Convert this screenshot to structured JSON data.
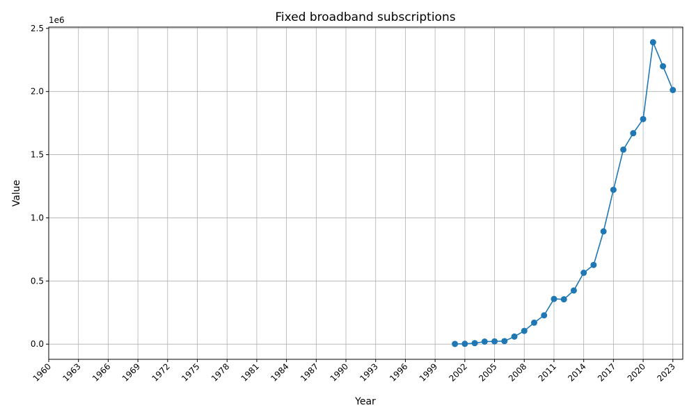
{
  "chart_data": {
    "type": "line",
    "title": "Fixed broadband subscriptions",
    "xlabel": "Year",
    "ylabel": "Value",
    "y_offset_label": "1e6",
    "xlim": [
      1960,
      2024
    ],
    "ylim": [
      -120000,
      2510000
    ],
    "x_ticks": [
      "1960",
      "1963",
      "1966",
      "1969",
      "1972",
      "1975",
      "1978",
      "1981",
      "1984",
      "1987",
      "1990",
      "1993",
      "1996",
      "1999",
      "2002",
      "2005",
      "2008",
      "2011",
      "2014",
      "2017",
      "2020",
      "2023"
    ],
    "y_ticks": [
      {
        "value": 0,
        "label": "0.0"
      },
      {
        "value": 500000,
        "label": "0.5"
      },
      {
        "value": 1000000,
        "label": "1.0"
      },
      {
        "value": 1500000,
        "label": "1.5"
      },
      {
        "value": 2000000,
        "label": "2.0"
      },
      {
        "value": 2500000,
        "label": "2.5"
      }
    ],
    "grid": true,
    "line_color": "#1f77b4",
    "marker": "circle",
    "series": [
      {
        "x": [
          2001,
          2002,
          2003,
          2004,
          2005,
          2006,
          2007,
          2008,
          2009,
          2010,
          2011,
          2012,
          2013,
          2014,
          2015,
          2016,
          2017,
          2018,
          2019,
          2020,
          2021,
          2022,
          2023
        ],
        "y": [
          2000,
          3000,
          8000,
          20000,
          22000,
          24000,
          60000,
          105000,
          170000,
          228000,
          358000,
          355000,
          425000,
          565000,
          627000,
          893000,
          1222000,
          1540000,
          1670000,
          1782000,
          2390000,
          2200000,
          2012000
        ]
      }
    ]
  }
}
